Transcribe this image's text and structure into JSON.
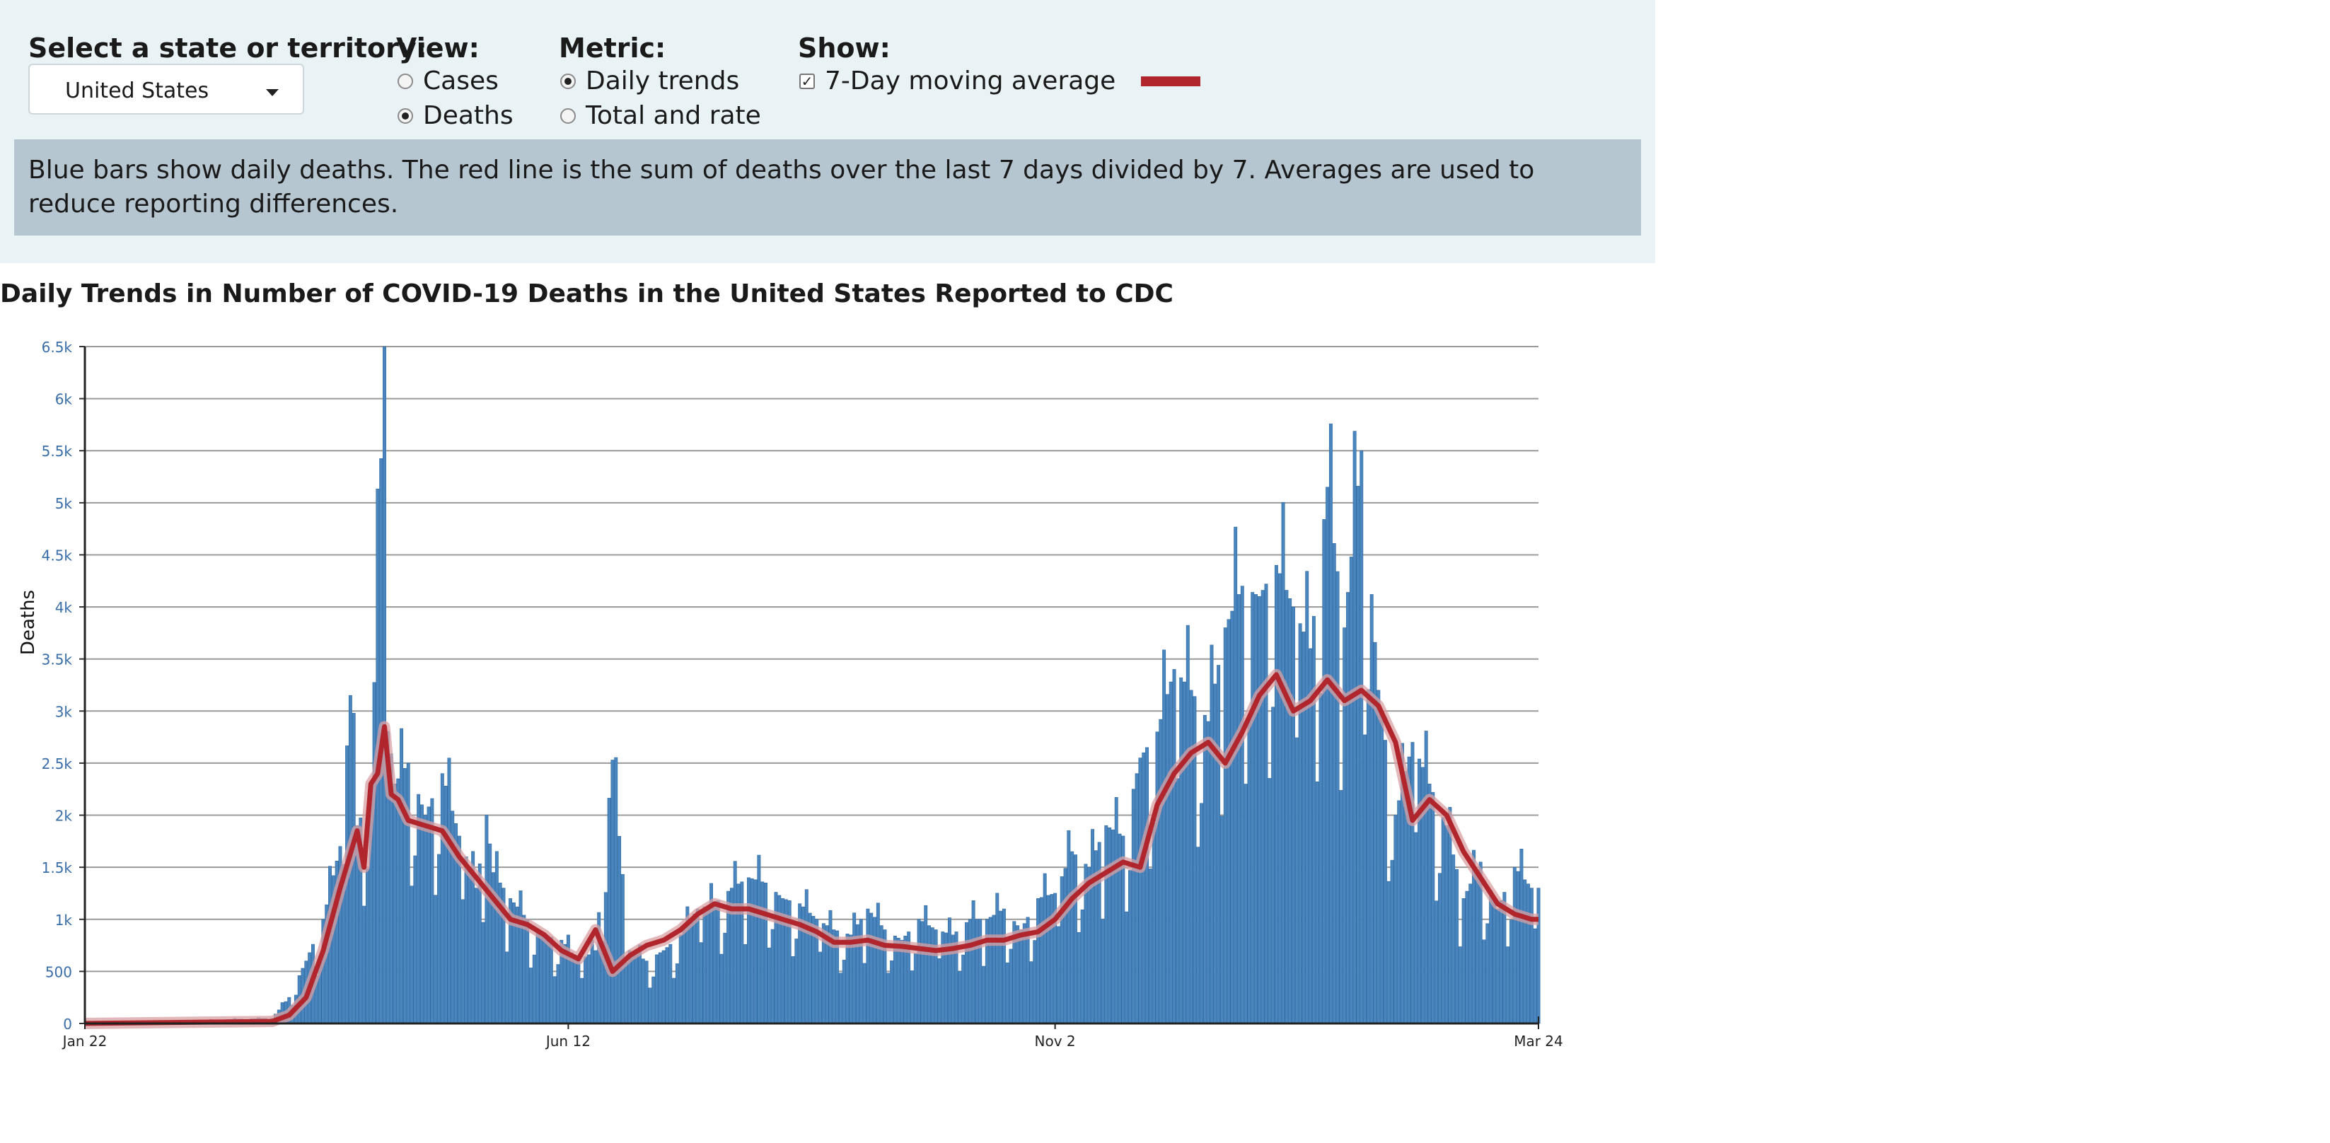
{
  "controls": {
    "state_label": "Select a state or territory:",
    "state_value": "United States",
    "view_label": "View:",
    "view_options": [
      "Cases",
      "Deaths"
    ],
    "view_selected": "Deaths",
    "metric_label": "Metric:",
    "metric_options": [
      "Daily trends",
      "Total and rate"
    ],
    "metric_selected": "Daily trends",
    "show_label": "Show:",
    "show_option": "7-Day moving average",
    "show_checked": true,
    "avg_color": "#b0262c"
  },
  "note": "Blue bars show daily deaths. The red line is the sum of deaths over the last 7 days divided by 7. Averages are used to reduce reporting differences.",
  "chart_data": {
    "type": "bar",
    "title": "Daily Trends in Number of COVID-19 Deaths in the United States Reported to CDC",
    "xlabel": "",
    "ylabel": "Deaths",
    "ylim": [
      0,
      6500
    ],
    "yticks": [
      "0",
      "500",
      "1k",
      "1.5k",
      "2k",
      "2.5k",
      "3k",
      "3.5k",
      "4k",
      "4.5k",
      "5k",
      "5.5k",
      "6k",
      "6.5k"
    ],
    "xtick_labels": [
      "Jan 22",
      "Jun 12",
      "Nov 2",
      "Mar 24"
    ],
    "xtick_day_index": [
      0,
      142,
      285,
      427
    ],
    "bar_color": "#4a86bd",
    "line_color": "#b0262c",
    "series": [
      {
        "name": "Daily deaths",
        "sampled_day_index": [
          0,
          55,
          60,
          65,
          70,
          75,
          78,
          80,
          84,
          88,
          91,
          95,
          100,
          105,
          110,
          115,
          118,
          120,
          125,
          130,
          135,
          140,
          145,
          150,
          155,
          160,
          165,
          170,
          175,
          180,
          185,
          190,
          195,
          200,
          205,
          210,
          215,
          220,
          225,
          230,
          235,
          240,
          245,
          250,
          255,
          260,
          265,
          270,
          275,
          280,
          285,
          290,
          295,
          300,
          305,
          310,
          315,
          320,
          325,
          330,
          335,
          340,
          345,
          350,
          355,
          360,
          365,
          370,
          375,
          380,
          385,
          390,
          395,
          400,
          405,
          410,
          415,
          420,
          425,
          427
        ],
        "values": [
          0,
          50,
          250,
          600,
          1000,
          1700,
          3150,
          1900,
          2200,
          6500,
          2300,
          2500,
          2000,
          2400,
          1800,
          1300,
          2000,
          1450,
          1200,
          1000,
          850,
          800,
          600,
          700,
          2530,
          700,
          600,
          700,
          850,
          1100,
          1150,
          1300,
          1400,
          1350,
          1200,
          1150,
          1000,
          900,
          850,
          1100,
          900,
          800,
          1000,
          900,
          850,
          1000,
          1000,
          1100,
          900,
          1200,
          1250,
          1650,
          1500,
          1900,
          1800,
          2550,
          2800,
          3400,
          3200,
          2900,
          3800,
          4200,
          4100,
          4400,
          4000,
          3600,
          5150,
          3800,
          5500,
          3200,
          2000,
          2700,
          2300,
          1900,
          1200,
          1550,
          1100,
          1500,
          1300,
          1300
        ]
      },
      {
        "name": "7-Day moving average",
        "sampled_day_index": [
          0,
          55,
          60,
          65,
          70,
          75,
          80,
          82,
          84,
          86,
          88,
          90,
          92,
          95,
          100,
          105,
          110,
          115,
          120,
          125,
          130,
          135,
          140,
          145,
          150,
          155,
          160,
          165,
          170,
          175,
          180,
          185,
          190,
          195,
          200,
          205,
          210,
          215,
          220,
          225,
          230,
          235,
          240,
          245,
          250,
          255,
          260,
          265,
          270,
          275,
          280,
          285,
          290,
          295,
          300,
          305,
          310,
          315,
          320,
          325,
          330,
          335,
          340,
          345,
          350,
          355,
          360,
          365,
          370,
          375,
          380,
          385,
          390,
          395,
          400,
          405,
          410,
          415,
          420,
          425,
          427
        ],
        "values": [
          0,
          20,
          80,
          250,
          700,
          1300,
          1850,
          1500,
          2300,
          2400,
          2850,
          2200,
          2150,
          1950,
          1900,
          1850,
          1600,
          1400,
          1200,
          1000,
          950,
          850,
          700,
          620,
          900,
          500,
          650,
          750,
          800,
          900,
          1050,
          1150,
          1100,
          1100,
          1050,
          1000,
          950,
          880,
          780,
          780,
          800,
          750,
          740,
          720,
          700,
          720,
          750,
          800,
          800,
          850,
          880,
          1000,
          1200,
          1350,
          1450,
          1550,
          1500,
          2100,
          2400,
          2600,
          2700,
          2500,
          2800,
          3150,
          3350,
          3000,
          3100,
          3300,
          3100,
          3200,
          3050,
          2700,
          1950,
          2150,
          2000,
          1650,
          1400,
          1150,
          1050,
          1000,
          1000
        ]
      }
    ]
  }
}
